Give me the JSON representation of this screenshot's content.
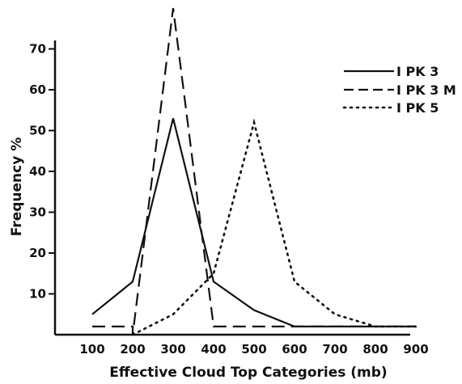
{
  "chart_data": {
    "type": "line",
    "title": "",
    "xlabel": "Effective Cloud Top Categories (mb)",
    "ylabel": "Frequency %",
    "x": [
      100,
      200,
      300,
      400,
      500,
      600,
      700,
      800,
      900
    ],
    "x_tick_labels": [
      "100",
      "200",
      "300",
      "400",
      "500",
      "600",
      "700",
      "800",
      "900"
    ],
    "y_ticks": [
      10,
      20,
      30,
      40,
      50,
      60,
      70
    ],
    "y_tick_labels": [
      "10",
      "20",
      "30",
      "40",
      "50",
      "60",
      "70"
    ],
    "xlim": [
      50,
      900
    ],
    "ylim": [
      0,
      80
    ],
    "grid": false,
    "legend_position": "top-right",
    "series": [
      {
        "name": "I PK 3",
        "style": "solid",
        "x": [
          100,
          200,
          300,
          400,
          500,
          600,
          700,
          800,
          900
        ],
        "values": [
          5,
          13,
          53,
          13,
          6,
          2,
          2,
          2,
          2
        ]
      },
      {
        "name": "I PK 3 M",
        "style": "dashed",
        "x": [
          100,
          200,
          200,
          300,
          400,
          400,
          500,
          600,
          700,
          800,
          900
        ],
        "values": [
          2,
          2,
          0,
          80,
          2,
          2,
          2,
          2,
          2,
          2,
          2
        ]
      },
      {
        "name": "I PK 5",
        "style": "dotted",
        "x": [
          200,
          300,
          400,
          500,
          600,
          700,
          800,
          900
        ],
        "values": [
          0,
          5,
          15,
          52,
          13,
          5,
          2,
          2
        ]
      }
    ]
  }
}
